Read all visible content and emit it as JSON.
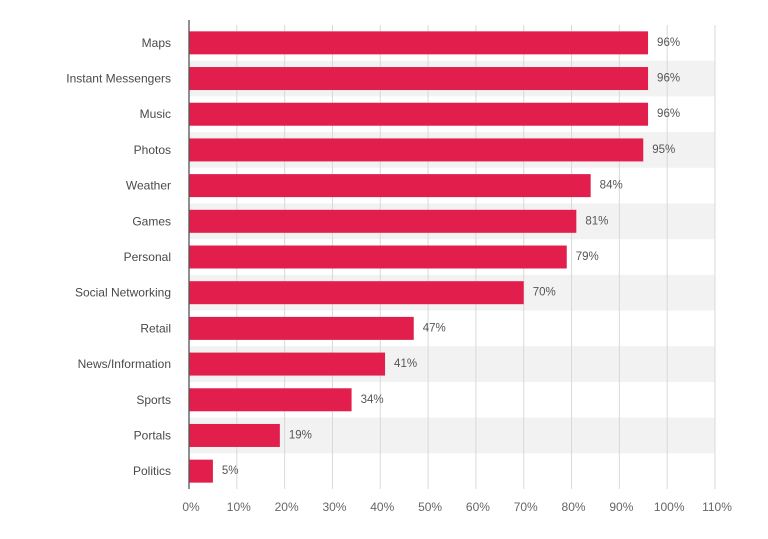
{
  "chart_data": {
    "type": "bar",
    "orientation": "horizontal",
    "categories": [
      "Maps",
      "Instant Messengers",
      "Music",
      "Photos",
      "Weather",
      "Games",
      "Personal",
      "Social Networking",
      "Retail",
      "News/Information",
      "Sports",
      "Portals",
      "Politics"
    ],
    "values": [
      96,
      96,
      96,
      95,
      84,
      81,
      79,
      70,
      47,
      41,
      34,
      19,
      5
    ],
    "data_labels": [
      "96%",
      "96%",
      "96%",
      "95%",
      "84%",
      "81%",
      "79%",
      "70%",
      "47%",
      "41%",
      "34%",
      "19%",
      "5%"
    ],
    "xlim": [
      0,
      110
    ],
    "x_ticks": [
      "0%",
      "10%",
      "20%",
      "30%",
      "40%",
      "50%",
      "60%",
      "70%",
      "80%",
      "90%",
      "100%",
      "110%"
    ],
    "grid": "vertical",
    "alternating_row_bands": true,
    "title": "",
    "xlabel": "",
    "ylabel": "",
    "colors": {
      "bar": "#e21f4c",
      "band": "#f2f2f2",
      "grid": "#d9d9d9",
      "axis": "#555555"
    }
  }
}
